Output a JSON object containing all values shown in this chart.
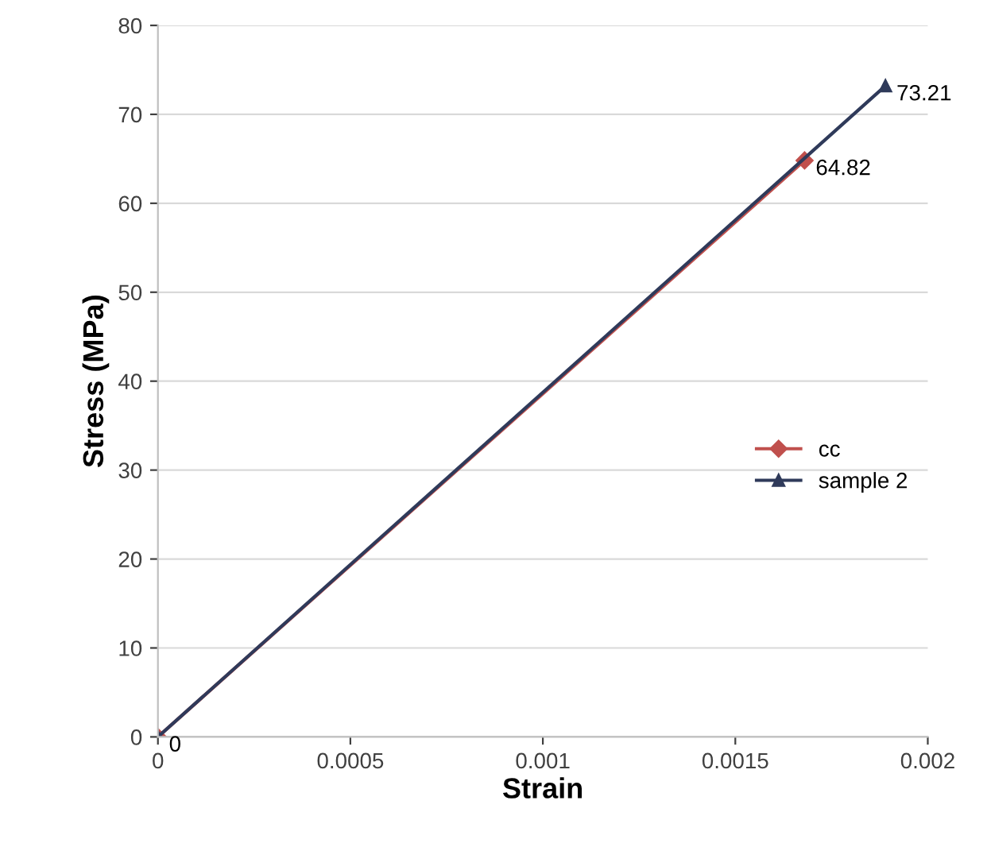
{
  "chart_data": {
    "type": "line",
    "xlabel": "Strain",
    "ylabel": "Stress (MPa)",
    "xlim": [
      0,
      0.002
    ],
    "xticks": [
      0,
      0.0005,
      0.001,
      0.0015,
      0.002
    ],
    "ylim": [
      0,
      80
    ],
    "yticks": [
      0,
      10,
      20,
      30,
      40,
      50,
      60,
      70,
      80
    ],
    "grid": "y",
    "legend": "right",
    "series": [
      {
        "name": "cc",
        "color": "#c0504d",
        "marker": "diamond",
        "x": [
          0,
          0.00168
        ],
        "values": [
          0,
          64.82
        ],
        "value_labels": [
          null,
          "64.82"
        ]
      },
      {
        "name": "sample 2",
        "color": "#2f3a5a",
        "marker": "triangle",
        "x": [
          0,
          0.00189
        ],
        "values": [
          0,
          73.21
        ],
        "value_labels": [
          "0",
          "73.21"
        ]
      }
    ]
  }
}
